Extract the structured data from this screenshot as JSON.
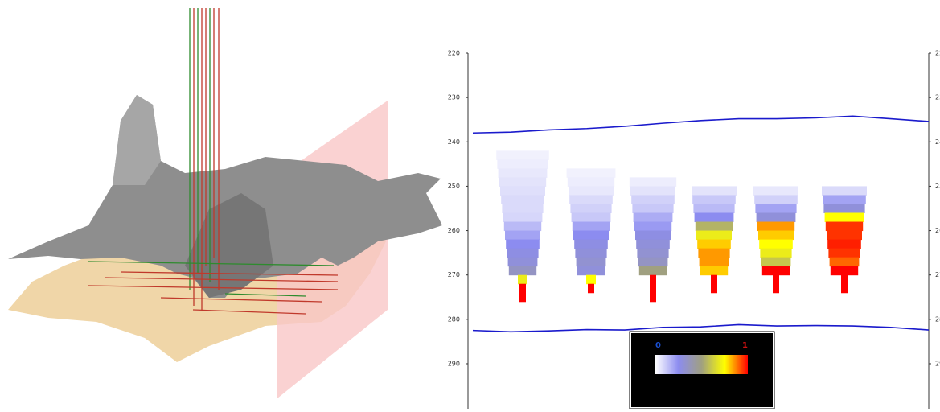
{
  "chart_data": {
    "type": "heatmap-profile",
    "ylim": [
      220,
      300
    ],
    "yticks": [
      220,
      230,
      240,
      250,
      260,
      270,
      280,
      290
    ],
    "y_inverted": true,
    "series": [
      {
        "color": "#1a1acc",
        "values": [
          238,
          237.8,
          237.3,
          237,
          236.5,
          235.8,
          235.2,
          234.8,
          234.8,
          234.6,
          234.2,
          234.8,
          235.4
        ]
      },
      {
        "color": "#1a1acc",
        "values": [
          282.5,
          282.8,
          282.6,
          282.3,
          282.4,
          281.8,
          281.7,
          281.2,
          281.5,
          281.4,
          281.5,
          281.8,
          282.4
        ]
      }
    ],
    "y_bins": [
      242,
      244,
      246,
      248,
      250,
      252,
      254,
      256,
      258,
      260,
      262,
      264,
      266,
      268,
      270,
      272,
      274,
      276
    ],
    "columns": [
      {
        "values": [
          0.03,
          0.04,
          0.05,
          0.06,
          0.07,
          0.08,
          0.08,
          0.09,
          0.15,
          0.2,
          0.25,
          0.28,
          0.3,
          0.35,
          0.7,
          1,
          1
        ]
      },
      {
        "values": [
          null,
          null,
          0.03,
          0.04,
          0.05,
          0.08,
          0.1,
          0.12,
          0.2,
          0.25,
          0.28,
          0.3,
          0.32,
          0.3,
          0.75,
          1,
          null
        ]
      },
      {
        "values": [
          null,
          null,
          null,
          0.04,
          0.06,
          0.1,
          0.12,
          0.18,
          0.22,
          0.28,
          0.3,
          0.32,
          0.35,
          0.5,
          1,
          1,
          1
        ]
      },
      {
        "values": [
          null,
          null,
          null,
          null,
          0.06,
          0.12,
          0.15,
          0.25,
          0.55,
          0.7,
          0.8,
          0.85,
          0.85,
          0.8,
          1,
          1,
          null
        ]
      },
      {
        "values": [
          null,
          null,
          null,
          null,
          0.05,
          0.1,
          0.2,
          0.3,
          0.85,
          0.8,
          0.75,
          0.7,
          0.6,
          1,
          1,
          1,
          null
        ]
      },
      {
        "values": [
          null,
          null,
          null,
          null,
          0.08,
          0.2,
          0.3,
          0.75,
          0.95,
          0.95,
          0.97,
          0.95,
          0.9,
          1,
          1,
          1,
          null
        ]
      }
    ],
    "colormap": [
      "#ffffff",
      "#8c8cf0",
      "#a0a080",
      "#ffff00",
      "#ff0000"
    ],
    "colorbar": {
      "ticks": [
        0,
        1
      ],
      "tick_colors": [
        "#1a4fd0",
        "#cc1010"
      ]
    }
  }
}
